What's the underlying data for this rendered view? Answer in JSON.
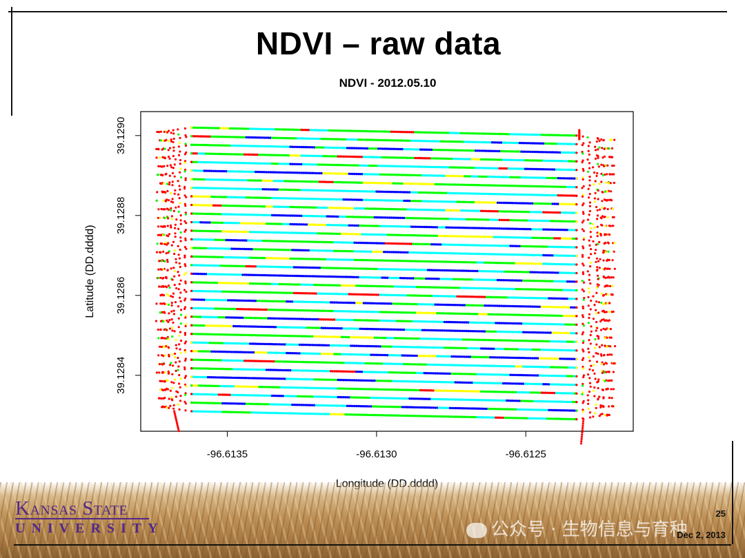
{
  "slide": {
    "title": "NDVI – raw data",
    "page_number": "25",
    "date": "Dec 2, 2013"
  },
  "logo": {
    "name": "Kansas State",
    "university": "UNIVERSITY",
    "brand_color": "#512888"
  },
  "watermark": {
    "text": "公众号 · 生物信息与育种"
  },
  "chart_data": {
    "type": "scatter",
    "title": "NDVI - 2012.05.10",
    "xlabel": "Longitude (DD.dddd)",
    "ylabel": "Latitude (DD.dddd)",
    "xlim": [
      -96.61379,
      -96.61214
    ],
    "ylim": [
      39.12826,
      39.12906
    ],
    "xticks": [
      -96.6135,
      -96.613,
      -96.6125
    ],
    "xtick_labels": [
      "-96.6135",
      "-96.6130",
      "-96.6125"
    ],
    "yticks": [
      39.1284,
      39.1286,
      39.1288,
      39.129
    ],
    "ytick_labels": [
      "39.1284",
      "39.1286",
      "39.1288",
      "39.1290"
    ],
    "grid": false,
    "palette": [
      "#ff0000",
      "#ffff00",
      "#00ff00",
      "#00ffff",
      "#0000ff"
    ],
    "passes": {
      "count": 34,
      "x_start": -96.61362,
      "x_end": -96.61233,
      "y_top_start": 39.12902,
      "y_top_end": 39.129,
      "y_bottom_start": 39.12831,
      "y_bottom_end": 39.12829
    },
    "turnaround": {
      "west_x": -96.61374,
      "east_x": -96.6122
    }
  }
}
